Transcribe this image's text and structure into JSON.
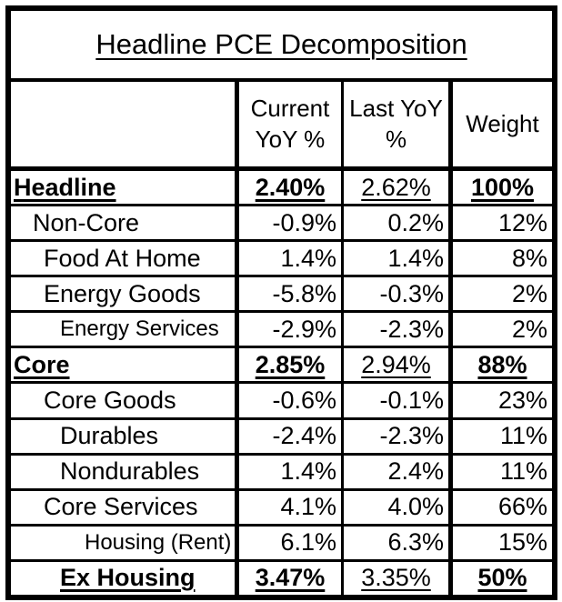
{
  "chart_data": {
    "type": "table",
    "title": "Headline PCE Decomposition",
    "columns": [
      "",
      "Current YoY %",
      "Last YoY %",
      "Weight"
    ],
    "rows": [
      {
        "label": "Headline",
        "current": "2.40%",
        "last": "2.62%",
        "weight": "100%",
        "level": 0,
        "emphasis": true,
        "small": false
      },
      {
        "label": "Non-Core",
        "current": "-0.9%",
        "last": "0.2%",
        "weight": "12%",
        "level": 1,
        "emphasis": false,
        "small": false
      },
      {
        "label": "Food At Home",
        "current": "1.4%",
        "last": "1.4%",
        "weight": "8%",
        "level": 2,
        "emphasis": false,
        "small": false
      },
      {
        "label": "Energy Goods",
        "current": "-5.8%",
        "last": "-0.3%",
        "weight": "2%",
        "level": 2,
        "emphasis": false,
        "small": false
      },
      {
        "label": "Energy Services",
        "current": "-2.9%",
        "last": "-2.3%",
        "weight": "2%",
        "level": 3,
        "emphasis": false,
        "small": true
      },
      {
        "label": "Core",
        "current": "2.85%",
        "last": "2.94%",
        "weight": "88%",
        "level": 0,
        "emphasis": true,
        "small": false
      },
      {
        "label": "Core Goods",
        "current": "-0.6%",
        "last": "-0.1%",
        "weight": "23%",
        "level": 2,
        "emphasis": false,
        "small": false
      },
      {
        "label": "Durables",
        "current": "-2.4%",
        "last": "-2.3%",
        "weight": "11%",
        "level": 3,
        "emphasis": false,
        "small": false
      },
      {
        "label": "Nondurables",
        "current": "1.4%",
        "last": "2.4%",
        "weight": "11%",
        "level": 3,
        "emphasis": false,
        "small": false
      },
      {
        "label": "Core Services",
        "current": "4.1%",
        "last": "4.0%",
        "weight": "66%",
        "level": 2,
        "emphasis": false,
        "small": false
      },
      {
        "label": "Housing (Rent)",
        "current": "6.1%",
        "last": "6.3%",
        "weight": "15%",
        "level": 4,
        "emphasis": false,
        "small": true
      },
      {
        "label": "Ex Housing",
        "current": "3.47%",
        "last": "3.35%",
        "weight": "50%",
        "level": 3,
        "emphasis": true,
        "small": false
      }
    ],
    "colors": {
      "border": "#000000",
      "text": "#000000",
      "background": "#ffffff"
    }
  }
}
